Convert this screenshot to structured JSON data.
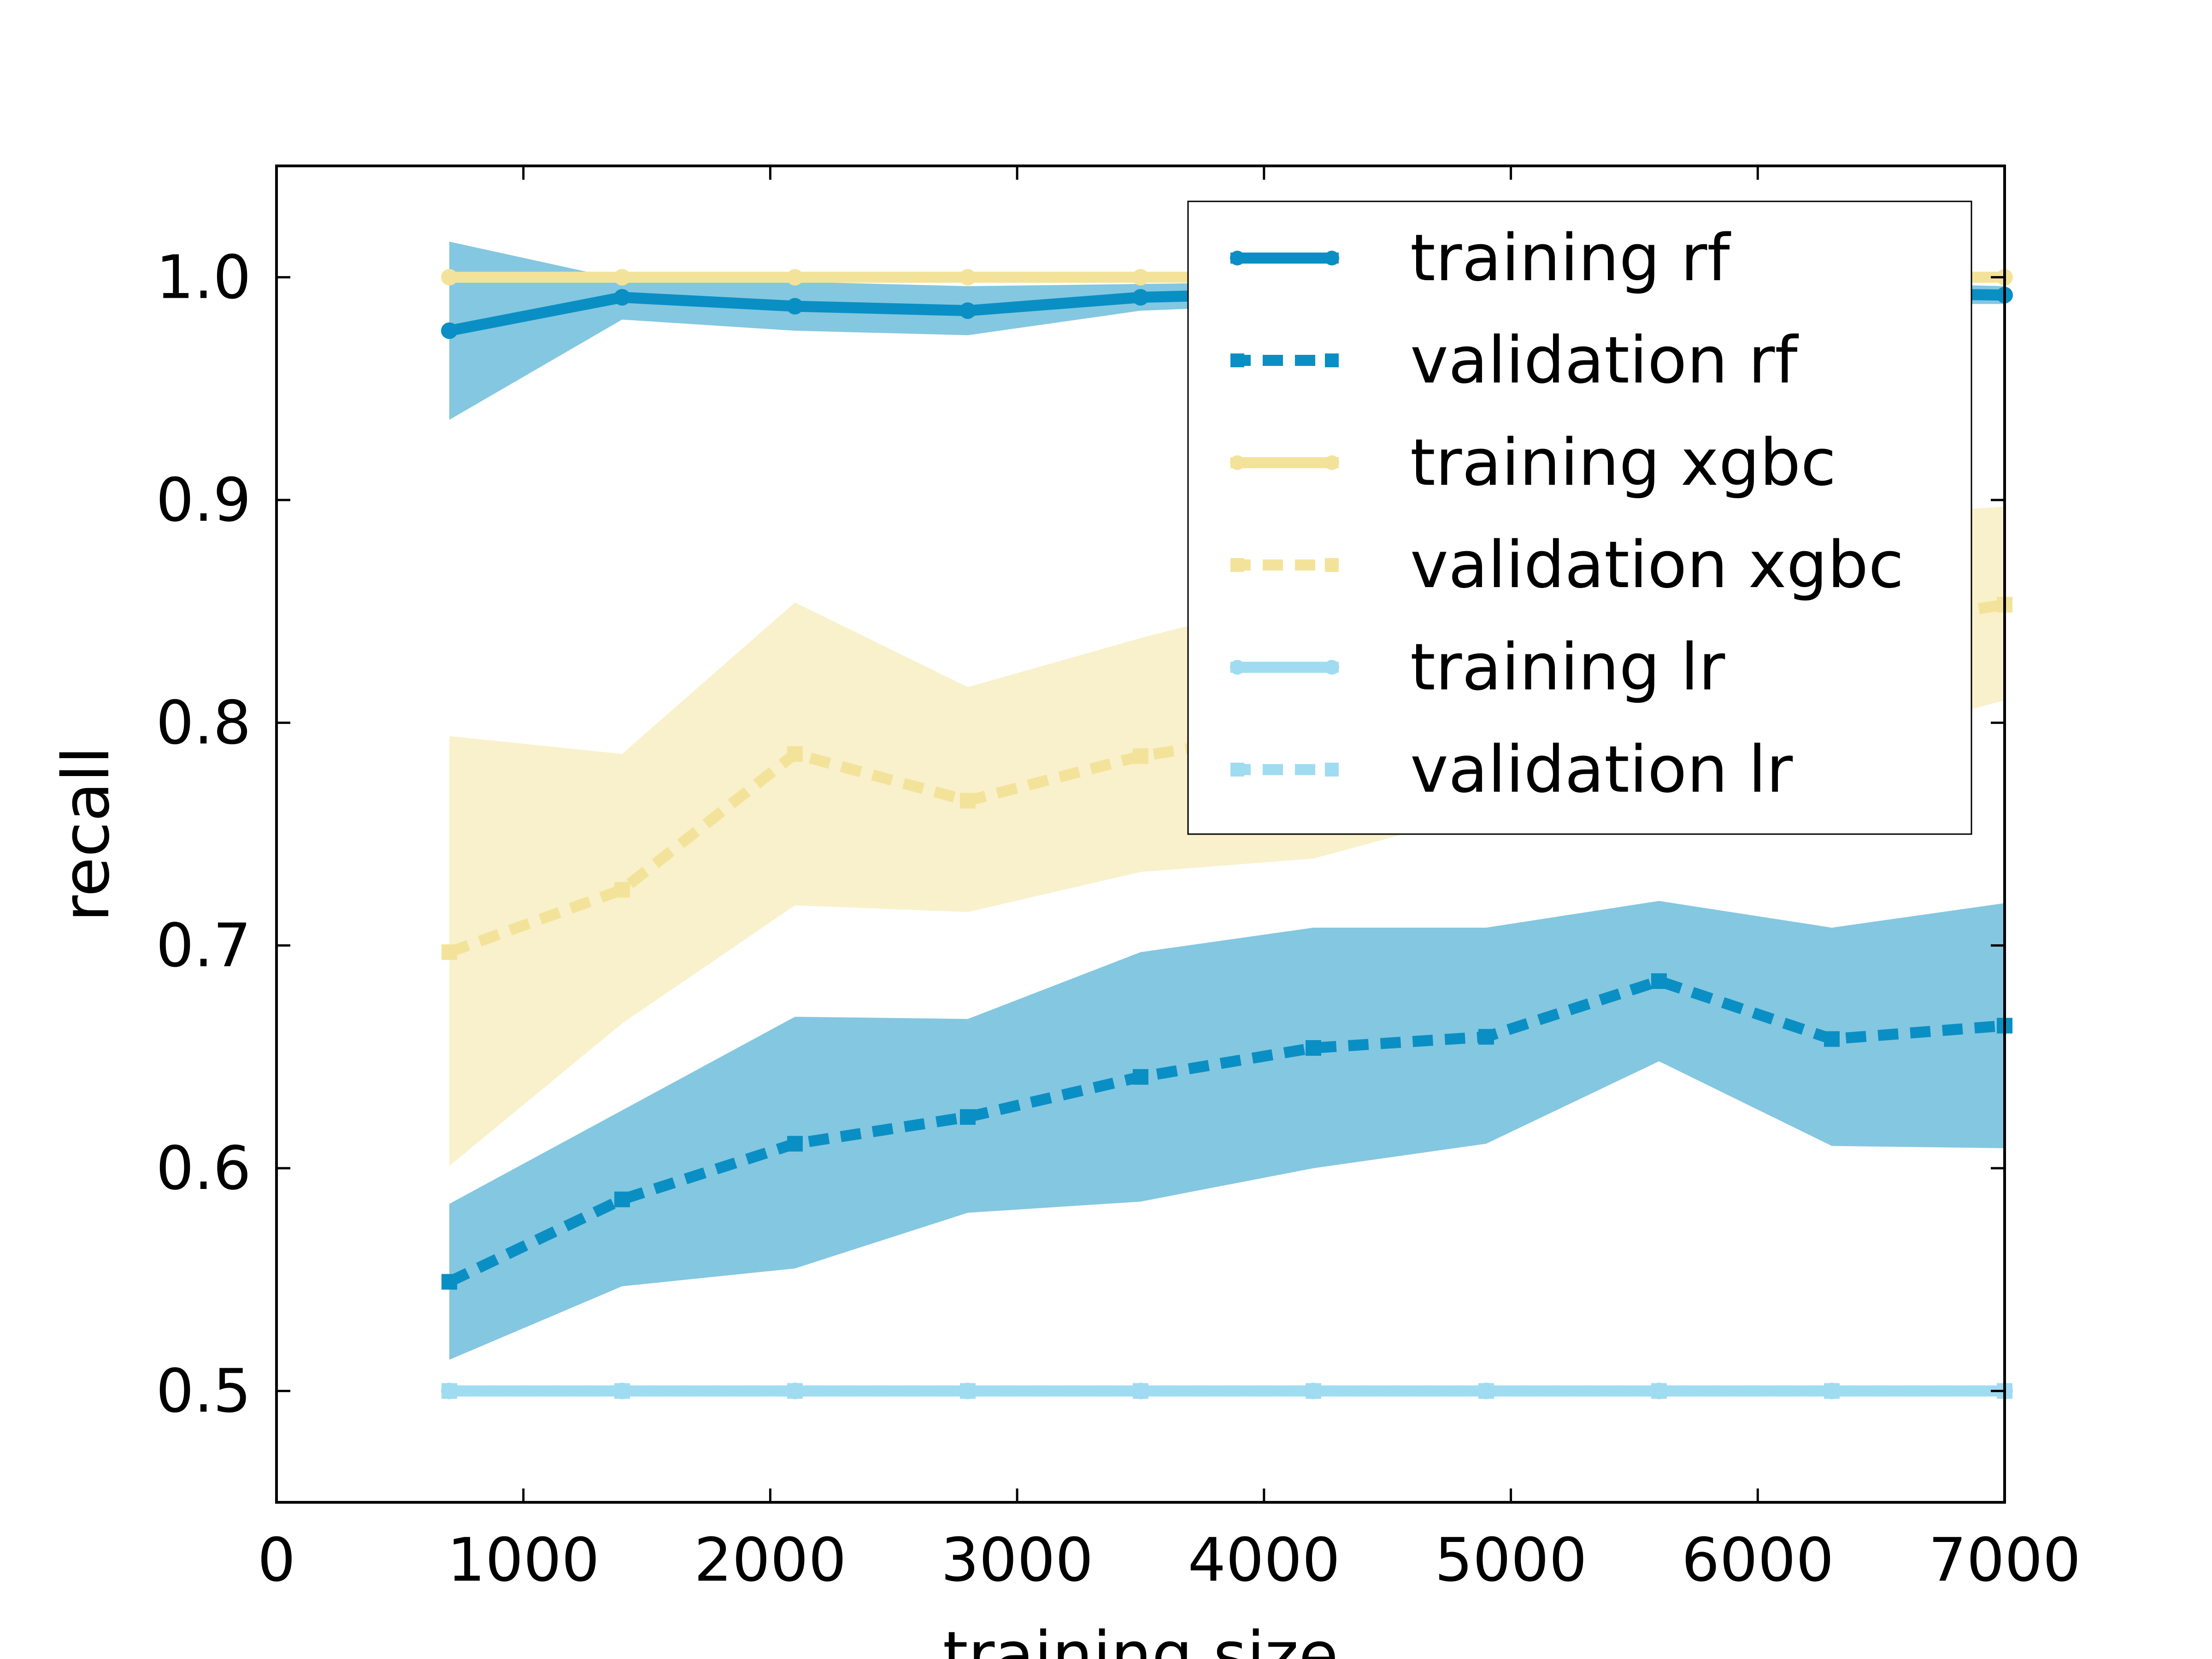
{
  "chart_data": {
    "type": "line",
    "title": "",
    "xlabel": "training size",
    "ylabel": "recall",
    "xlim": [
      0,
      7000
    ],
    "ylim": [
      0.45,
      1.05
    ],
    "xticks": [
      0,
      1000,
      2000,
      3000,
      4000,
      5000,
      6000,
      7000
    ],
    "xtick_labels": [
      "0",
      "1000",
      "2000",
      "3000",
      "4000",
      "5000",
      "6000",
      "7000"
    ],
    "yticks": [
      0.5,
      0.6,
      0.7,
      0.8,
      0.9,
      1.0
    ],
    "ytick_labels": [
      "0.5",
      "0.6",
      "0.7",
      "0.8",
      "0.9",
      "1.0"
    ],
    "grid": false,
    "legend_position": "top-right",
    "x": [
      700,
      1400,
      2100,
      2800,
      3500,
      4200,
      4900,
      5600,
      6300,
      7000
    ],
    "series": [
      {
        "name": "training rf",
        "color": "#0a8fc4",
        "style": "solid",
        "marker": "circle",
        "values": [
          0.976,
          0.991,
          0.987,
          0.985,
          0.991,
          0.993,
          0.993,
          0.994,
          0.993,
          0.992
        ],
        "band_low": [
          0.936,
          0.981,
          0.976,
          0.974,
          0.985,
          0.988,
          0.988,
          0.989,
          0.988,
          0.988
        ],
        "band_high": [
          1.016,
          0.999,
          0.998,
          0.996,
          0.997,
          0.998,
          0.998,
          0.999,
          0.998,
          0.996
        ]
      },
      {
        "name": "validation rf",
        "color": "#0a8fc4",
        "style": "dashed",
        "marker": "square",
        "values": [
          0.549,
          0.586,
          0.611,
          0.623,
          0.641,
          0.654,
          0.659,
          0.684,
          0.658,
          0.664
        ],
        "band_low": [
          0.514,
          0.547,
          0.555,
          0.58,
          0.585,
          0.6,
          0.611,
          0.648,
          0.61,
          0.609
        ],
        "band_high": [
          0.584,
          0.626,
          0.668,
          0.667,
          0.697,
          0.708,
          0.708,
          0.72,
          0.708,
          0.719
        ]
      },
      {
        "name": "training xgbc",
        "color": "#f3e39a",
        "style": "solid",
        "marker": "circle",
        "values": [
          1.0,
          1.0,
          1.0,
          1.0,
          1.0,
          1.0,
          1.0,
          1.0,
          1.0,
          1.0
        ]
      },
      {
        "name": "validation xgbc",
        "color": "#f3e39a",
        "style": "dashed",
        "marker": "square",
        "values": [
          0.697,
          0.725,
          0.786,
          0.765,
          0.785,
          0.797,
          0.815,
          0.832,
          0.841,
          0.853
        ],
        "band_low": [
          0.601,
          0.665,
          0.718,
          0.715,
          0.733,
          0.739,
          0.76,
          0.78,
          0.79,
          0.81
        ],
        "band_high": [
          0.794,
          0.786,
          0.854,
          0.816,
          0.838,
          0.858,
          0.87,
          0.884,
          0.892,
          0.897
        ]
      },
      {
        "name": "training lr",
        "color": "#9fdcf2",
        "style": "solid",
        "marker": "circle",
        "values": [
          0.5,
          0.5,
          0.5,
          0.5,
          0.5,
          0.5,
          0.5,
          0.5,
          0.5,
          0.5
        ]
      },
      {
        "name": "validation lr",
        "color": "#9fdcf2",
        "style": "dashed",
        "marker": "square",
        "values": [
          0.5,
          0.5,
          0.5,
          0.5,
          0.5,
          0.5,
          0.5,
          0.5,
          0.5,
          0.5
        ]
      }
    ]
  }
}
